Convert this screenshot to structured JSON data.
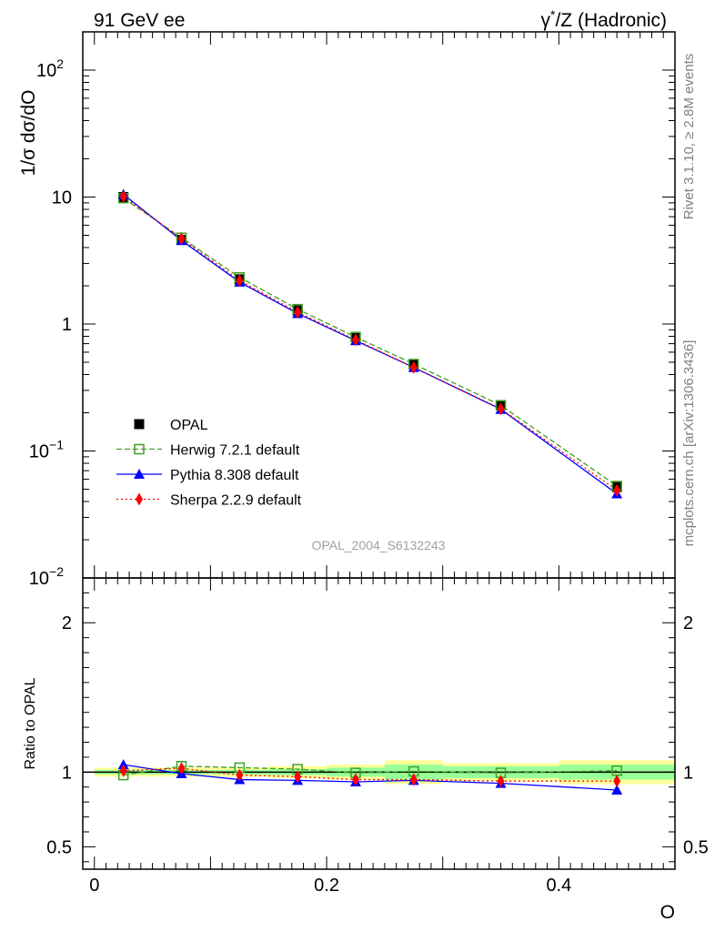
{
  "header": {
    "left": "91 GeV ee",
    "right_pre": "γ",
    "right_sup": "*",
    "right_post": "/Z (Hadronic)"
  },
  "side_labels": {
    "rivet": "Rivet 3.1.10, ≥ 2.8M events",
    "mcplots": "mcplots.cern.ch [arXiv:1306.3436]"
  },
  "watermark": "OPAL_2004_S6132243",
  "colors": {
    "data": "#000000",
    "herwig": "#3f9f1f",
    "pythia": "#0000ff",
    "sherpa": "#ff0000",
    "band_outer": "#ffff99",
    "band_inner": "#99ff99"
  },
  "chart_data": [
    {
      "type": "line",
      "name": "main",
      "ylabel": "1/σ dσ/dO",
      "y_scale": "log",
      "xlim": [
        -0.01,
        0.5
      ],
      "ylim": [
        0.01,
        200
      ],
      "y_ticks": [
        {
          "value": 100,
          "base": "10",
          "exp": "2"
        },
        {
          "value": 10,
          "base": "10",
          "exp": ""
        },
        {
          "value": 1,
          "base": "1",
          "exp": ""
        },
        {
          "value": 0.1,
          "base": "10",
          "exp": "−1"
        },
        {
          "value": 0.01,
          "base": "10",
          "exp": "−2"
        }
      ],
      "x": [
        0.025,
        0.075,
        0.125,
        0.175,
        0.225,
        0.275,
        0.35,
        0.45
      ],
      "x_bins": [
        [
          0.0,
          0.05
        ],
        [
          0.05,
          0.1
        ],
        [
          0.1,
          0.15
        ],
        [
          0.15,
          0.2
        ],
        [
          0.2,
          0.25
        ],
        [
          0.25,
          0.3
        ],
        [
          0.3,
          0.4
        ],
        [
          0.4,
          0.5
        ]
      ],
      "legend_position": "lower-left",
      "series": [
        {
          "name": "OPAL",
          "key": "data",
          "values": [
            10.0,
            4.6,
            2.25,
            1.28,
            0.79,
            0.48,
            0.23,
            0.052
          ]
        },
        {
          "name": "Herwig 7.2.1 default",
          "key": "herwig",
          "values": [
            9.8,
            4.78,
            2.33,
            1.31,
            0.79,
            0.484,
            0.229,
            0.053
          ]
        },
        {
          "name": "Pythia 8.308 default",
          "key": "pythia",
          "values": [
            10.5,
            4.55,
            2.14,
            1.21,
            0.74,
            0.455,
            0.213,
            0.046
          ]
        },
        {
          "name": "Sherpa 2.2.9 default",
          "key": "sherpa",
          "values": [
            10.1,
            4.7,
            2.2,
            1.24,
            0.75,
            0.455,
            0.215,
            0.049
          ]
        }
      ]
    },
    {
      "type": "line",
      "name": "ratio",
      "ylabel": "Ratio to OPAL",
      "xlabel": "O",
      "xlim": [
        -0.01,
        0.5
      ],
      "ylim": [
        0.35,
        2.3
      ],
      "x_ticks": [
        {
          "value": 0,
          "label": "0"
        },
        {
          "value": 0.2,
          "label": "0.2"
        },
        {
          "value": 0.4,
          "label": "0.4"
        }
      ],
      "y_ticks": [
        {
          "value": 2,
          "label": "2"
        },
        {
          "value": 1,
          "label": "1"
        },
        {
          "value": 0.5,
          "label": "0.5"
        }
      ],
      "band_outer": [
        0.03,
        0.03,
        0.03,
        0.04,
        0.05,
        0.08,
        0.06,
        0.08
      ],
      "band_inner": [
        0.015,
        0.015,
        0.015,
        0.02,
        0.03,
        0.05,
        0.04,
        0.05
      ],
      "series": [
        {
          "name": "Herwig 7.2.1 default",
          "key": "herwig",
          "values": [
            0.98,
            1.04,
            1.03,
            1.02,
            0.995,
            1.005,
            0.995,
            1.01
          ]
        },
        {
          "name": "Pythia 8.308 default",
          "key": "pythia",
          "values": [
            1.05,
            0.99,
            0.95,
            0.945,
            0.935,
            0.945,
            0.925,
            0.88
          ]
        },
        {
          "name": "Sherpa 2.2.9 default",
          "key": "sherpa",
          "values": [
            1.01,
            1.025,
            0.98,
            0.97,
            0.95,
            0.95,
            0.94,
            0.94
          ]
        }
      ]
    }
  ]
}
